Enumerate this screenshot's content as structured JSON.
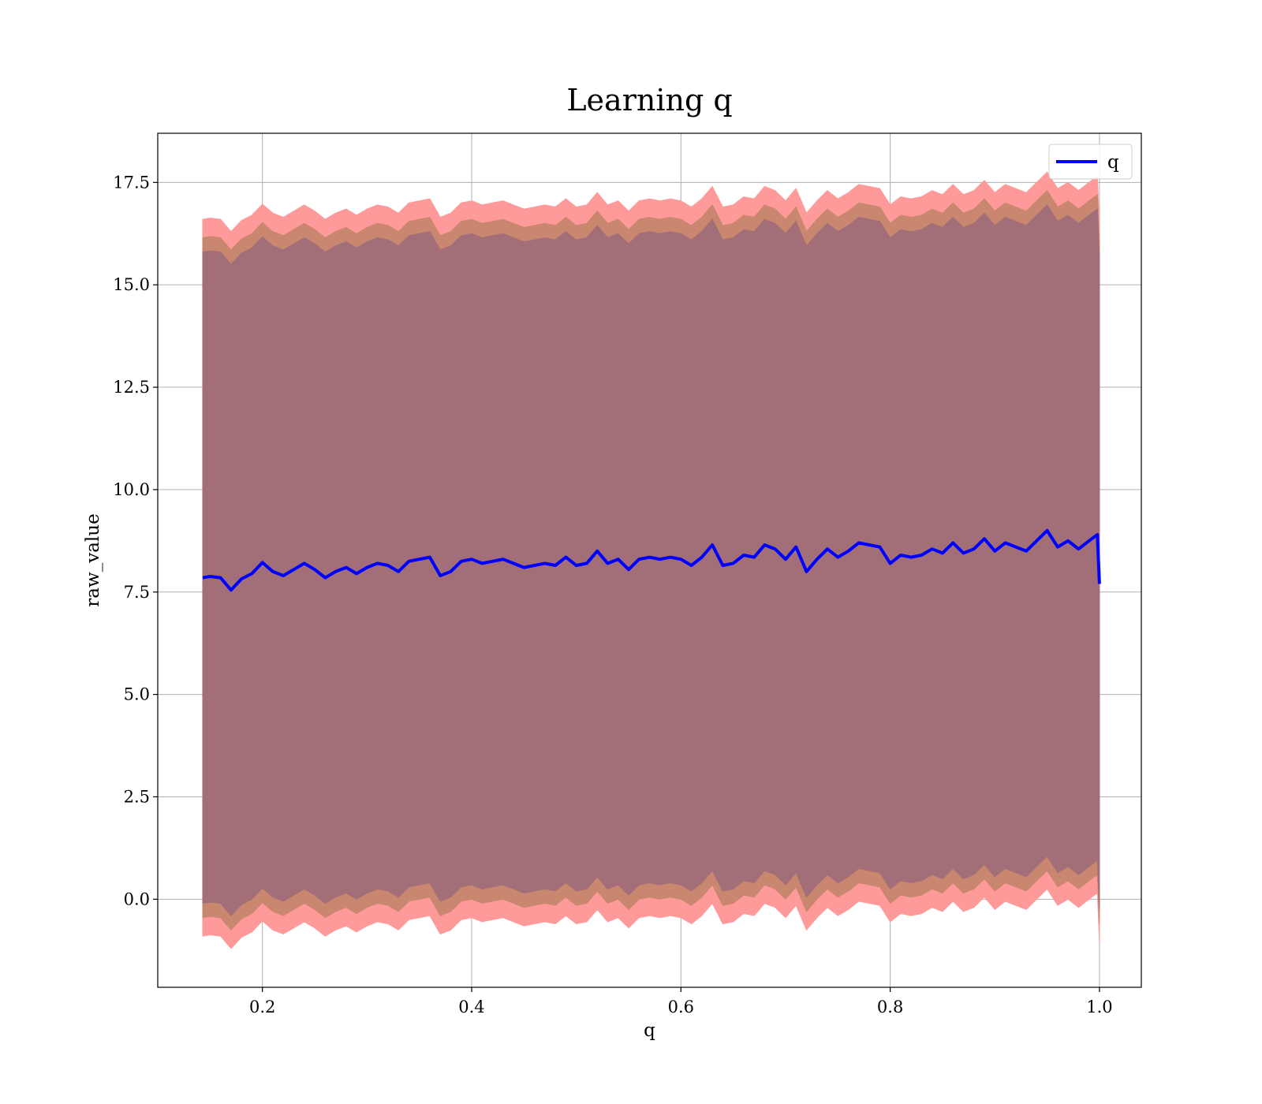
{
  "chart_data": {
    "type": "line",
    "title": "Learning q",
    "xlabel": "q",
    "ylabel": "raw_value",
    "xlim": [
      0.1,
      1.04
    ],
    "ylim": [
      -2.15,
      18.7
    ],
    "xticks": [
      0.2,
      0.4,
      0.6,
      0.8,
      1.0
    ],
    "xtick_labels": [
      "0.2",
      "0.4",
      "0.6",
      "0.8",
      "1.0"
    ],
    "yticks": [
      0.0,
      2.5,
      5.0,
      7.5,
      10.0,
      12.5,
      15.0,
      17.5
    ],
    "ytick_labels": [
      "0.0",
      "2.5",
      "5.0",
      "7.5",
      "10.0",
      "12.5",
      "15.0",
      "17.5"
    ],
    "grid": true,
    "legend": {
      "position": "top-right",
      "entries": [
        "q"
      ]
    },
    "colors": {
      "line": "#0000ff",
      "band_outer": "#ff9a9a",
      "band_middle": "#c8876e",
      "band_inner": "#a26f79"
    },
    "series": [
      {
        "name": "q",
        "x": [
          0.143,
          0.15,
          0.16,
          0.17,
          0.18,
          0.19,
          0.2,
          0.21,
          0.22,
          0.23,
          0.24,
          0.25,
          0.26,
          0.27,
          0.28,
          0.29,
          0.3,
          0.31,
          0.32,
          0.33,
          0.34,
          0.35,
          0.36,
          0.37,
          0.38,
          0.39,
          0.4,
          0.41,
          0.42,
          0.43,
          0.44,
          0.45,
          0.46,
          0.47,
          0.48,
          0.49,
          0.5,
          0.51,
          0.52,
          0.53,
          0.54,
          0.55,
          0.56,
          0.57,
          0.58,
          0.59,
          0.6,
          0.61,
          0.62,
          0.63,
          0.64,
          0.65,
          0.66,
          0.67,
          0.68,
          0.69,
          0.7,
          0.71,
          0.72,
          0.73,
          0.74,
          0.75,
          0.76,
          0.77,
          0.78,
          0.79,
          0.8,
          0.81,
          0.82,
          0.83,
          0.84,
          0.85,
          0.86,
          0.87,
          0.88,
          0.89,
          0.9,
          0.91,
          0.92,
          0.93,
          0.94,
          0.95,
          0.96,
          0.97,
          0.98,
          0.99,
          0.998,
          1.0
        ],
        "y": [
          7.85,
          7.88,
          7.85,
          7.55,
          7.82,
          7.95,
          8.22,
          8.0,
          7.9,
          8.05,
          8.2,
          8.05,
          7.85,
          8.0,
          8.1,
          7.95,
          8.1,
          8.2,
          8.15,
          8.0,
          8.25,
          8.3,
          8.35,
          7.9,
          8.0,
          8.25,
          8.3,
          8.2,
          8.25,
          8.3,
          8.2,
          8.1,
          8.15,
          8.2,
          8.15,
          8.35,
          8.15,
          8.2,
          8.5,
          8.2,
          8.3,
          8.05,
          8.3,
          8.35,
          8.3,
          8.35,
          8.3,
          8.15,
          8.35,
          8.65,
          8.15,
          8.2,
          8.4,
          8.35,
          8.65,
          8.55,
          8.3,
          8.6,
          8.0,
          8.3,
          8.55,
          8.35,
          8.5,
          8.7,
          8.65,
          8.6,
          8.2,
          8.4,
          8.35,
          8.4,
          8.55,
          8.45,
          8.7,
          8.45,
          8.55,
          8.8,
          8.5,
          8.7,
          8.6,
          8.5,
          8.75,
          9.0,
          8.6,
          8.75,
          8.55,
          8.75,
          8.9,
          7.7
        ]
      }
    ],
    "bands": [
      {
        "name": "outer",
        "half_width": 8.75
      },
      {
        "name": "middle",
        "half_width": 8.3
      },
      {
        "name": "inner",
        "half_width": 7.95
      }
    ]
  }
}
